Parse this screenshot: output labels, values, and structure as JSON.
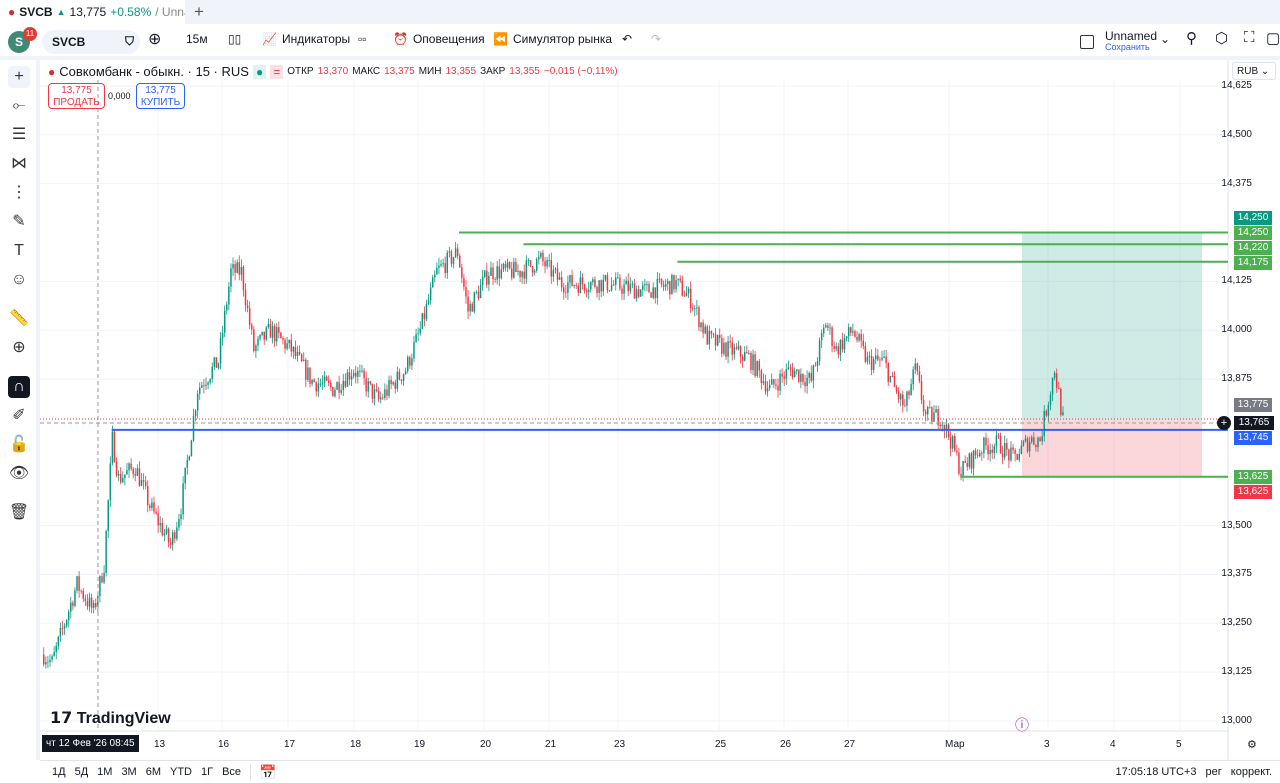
{
  "tab": {
    "title": "SVCB",
    "price": "13,775",
    "change": "+0.58%",
    "layout": "/ Unname"
  },
  "toolbar": {
    "badge": "11",
    "avatar": "S",
    "symbol": "SVCB",
    "interval": "15м",
    "indicators": "Индикаторы",
    "alerts": "Оповещения",
    "replay": "Симулятор рынка",
    "layout_name": "Unnamed",
    "save": "Сохранить"
  },
  "legend": {
    "title": "Совкомбанк - обыкн. · 15 · RUS",
    "o_label": "ОТКР",
    "o": "13,370",
    "h_label": "МАКС",
    "h": "13,375",
    "l_label": "МИН",
    "l": "13,355",
    "c_label": "ЗАКР",
    "c": "13,355",
    "chg": "−0,015 (−0,11%)"
  },
  "trade": {
    "sell_price": "13,775",
    "sell": "ПРОДАТЬ",
    "spread": "0,000",
    "buy_price": "13,775",
    "buy": "КУПИТЬ"
  },
  "currency": "RUB",
  "watermark": "TradingView",
  "colors": {
    "up": "#089981",
    "down": "#f23645",
    "line_green": "#4caf50",
    "line_blue": "#2962ff"
  },
  "chart_data": {
    "type": "candlestick",
    "ylim": [
      13.0,
      14.625
    ],
    "yticks": [
      "14,625",
      "14,500",
      "14,375",
      "14,125",
      "14,000",
      "13,875",
      "13,500",
      "13,375",
      "13,250",
      "13,125",
      "13,000"
    ],
    "ytick_values": [
      14.625,
      14.5,
      14.375,
      14.125,
      14.0,
      13.875,
      13.5,
      13.375,
      13.25,
      13.125,
      13.0
    ],
    "xticks": [
      "13",
      "16",
      "17",
      "18",
      "19",
      "20",
      "21",
      "23",
      "25",
      "26",
      "27",
      "Мар",
      "3",
      "4",
      "5"
    ],
    "crosshair_date": "чт 12 Фев '26   08:45",
    "close_path": [
      [
        0,
        13.17
      ],
      [
        4,
        13.15
      ],
      [
        16,
        13.35
      ],
      [
        24,
        13.28
      ],
      [
        29,
        13.4
      ],
      [
        33,
        13.72
      ],
      [
        36,
        13.62
      ],
      [
        44,
        13.65
      ],
      [
        51,
        13.55
      ],
      [
        61,
        13.45
      ],
      [
        66,
        13.55
      ],
      [
        70,
        13.7
      ],
      [
        74,
        13.85
      ],
      [
        84,
        13.92
      ],
      [
        90,
        14.15
      ],
      [
        95,
        14.15
      ],
      [
        101,
        13.95
      ],
      [
        109,
        14.0
      ],
      [
        119,
        13.95
      ],
      [
        129,
        13.87
      ],
      [
        139,
        13.85
      ],
      [
        149,
        13.9
      ],
      [
        161,
        13.82
      ],
      [
        174,
        13.9
      ],
      [
        181,
        14.0
      ],
      [
        189,
        14.15
      ],
      [
        199,
        14.2
      ],
      [
        204,
        14.05
      ],
      [
        214,
        14.15
      ],
      [
        229,
        14.15
      ],
      [
        239,
        14.18
      ],
      [
        249,
        14.12
      ],
      [
        269,
        14.12
      ],
      [
        289,
        14.1
      ],
      [
        304,
        14.12
      ],
      [
        311,
        14.08
      ],
      [
        319,
        13.98
      ],
      [
        329,
        13.95
      ],
      [
        339,
        13.93
      ],
      [
        349,
        13.85
      ],
      [
        359,
        13.9
      ],
      [
        369,
        13.87
      ],
      [
        376,
        14.02
      ],
      [
        381,
        13.95
      ],
      [
        389,
        14.0
      ],
      [
        396,
        13.92
      ],
      [
        404,
        13.92
      ],
      [
        409,
        13.85
      ],
      [
        414,
        13.8
      ],
      [
        419,
        13.9
      ],
      [
        424,
        13.78
      ],
      [
        431,
        13.78
      ],
      [
        436,
        13.72
      ],
      [
        441,
        13.64
      ],
      [
        451,
        13.7
      ],
      [
        459,
        13.71
      ],
      [
        466,
        13.67
      ],
      [
        474,
        13.72
      ],
      [
        479,
        13.72
      ],
      [
        484,
        13.85
      ],
      [
        486,
        13.9
      ],
      [
        490,
        13.77
      ]
    ],
    "levels": [
      {
        "price": 14.25,
        "label": "14,250",
        "color": "#4caf50",
        "from_bar": 200
      },
      {
        "price": 14.22,
        "label": "14,220",
        "color": "#4caf50",
        "from_bar": 231
      },
      {
        "price": 14.175,
        "label": "14,175",
        "color": "#4caf50",
        "from_bar": 305
      },
      {
        "price": 13.625,
        "label": "13,625",
        "color": "#4caf50",
        "from_bar": 441
      },
      {
        "price": 13.745,
        "label": "13,745",
        "color": "#2962ff",
        "from_bar": 33
      }
    ],
    "position": {
      "target": 14.25,
      "entry": 13.77,
      "stop": 13.625,
      "target_label": "14,250",
      "stop_label": "13,625"
    },
    "last_price": "13,775",
    "crosshair_price": "13,765"
  },
  "bottom": {
    "ranges": [
      "1Д",
      "5Д",
      "1М",
      "3М",
      "6М",
      "YTD",
      "1Г",
      "Все"
    ],
    "time": "17:05:18 UTC+3",
    "session": "рег",
    "adj": "коррект."
  }
}
